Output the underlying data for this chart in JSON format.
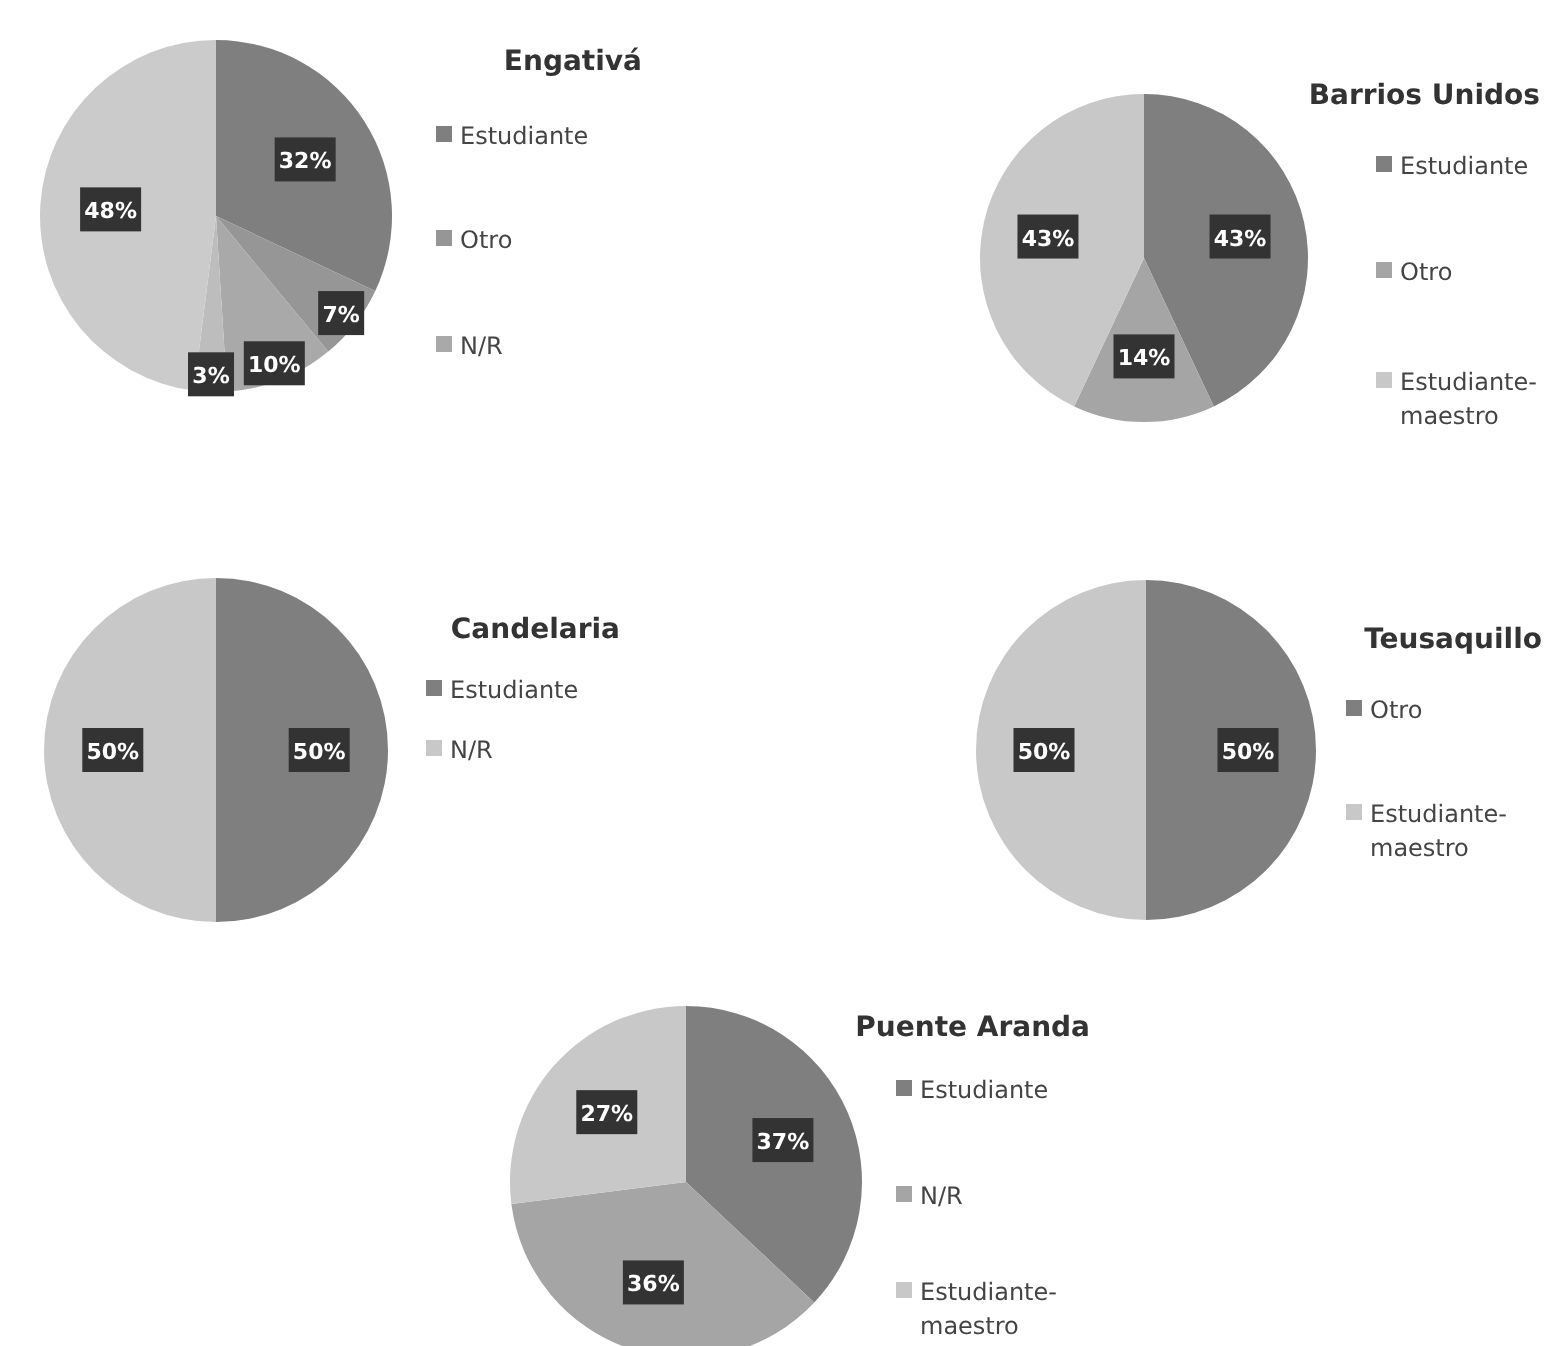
{
  "chart_data": [
    {
      "type": "pie",
      "title": "Engativá",
      "legend": "right",
      "categories": [
        "Estudiante",
        "Otro",
        "N/R",
        null,
        null
      ],
      "values": [
        32,
        7,
        10,
        3,
        48
      ],
      "value_labels": [
        "32%",
        "7%",
        "10%",
        "3%",
        "48%"
      ],
      "colors": [
        "#7f7f7f",
        "#969696",
        "#a9a9a9",
        "#bdbdbd",
        "#cbcbcb"
      ]
    },
    {
      "type": "pie",
      "title": "Barrios Unidos",
      "legend": "right",
      "categories": [
        "Estudiante",
        "Otro",
        "Estudiante-maestro"
      ],
      "values": [
        43,
        14,
        43
      ],
      "value_labels": [
        "43%",
        "14%",
        "43%"
      ],
      "colors": [
        "#7f7f7f",
        "#a5a5a5",
        "#c8c8c8"
      ]
    },
    {
      "type": "pie",
      "title": "Candelaria",
      "legend": "right",
      "categories": [
        "Estudiante",
        "N/R"
      ],
      "values": [
        50,
        50
      ],
      "value_labels": [
        "50%",
        "50%"
      ],
      "colors": [
        "#7f7f7f",
        "#c8c8c8"
      ]
    },
    {
      "type": "pie",
      "title": "Teusaquillo",
      "legend": "right",
      "categories": [
        "Otro",
        "Estudiante-maestro"
      ],
      "values": [
        50,
        50
      ],
      "value_labels": [
        "50%",
        "50%"
      ],
      "colors": [
        "#7f7f7f",
        "#c8c8c8"
      ]
    },
    {
      "type": "pie",
      "title": "Puente Aranda",
      "legend": "right",
      "categories": [
        "Estudiante",
        "N/R",
        "Estudiante-maestro"
      ],
      "values": [
        37,
        36,
        27
      ],
      "value_labels": [
        "37%",
        "36%",
        "27%"
      ],
      "colors": [
        "#7f7f7f",
        "#a5a5a5",
        "#c8c8c8"
      ]
    }
  ]
}
